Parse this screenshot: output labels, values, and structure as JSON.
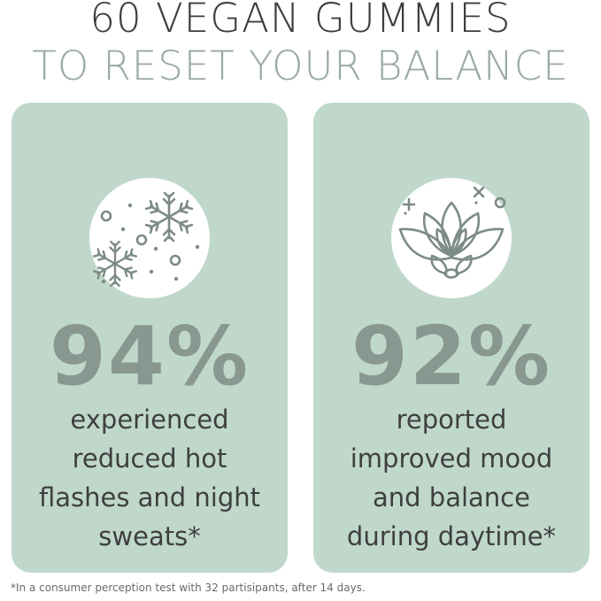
{
  "headline": {
    "line1": "60 VEGAN GUMMIES",
    "line2": "TO RESET YOUR BALANCE"
  },
  "cards": [
    {
      "icon": "snowflake-icon",
      "stat": "94%",
      "lines": [
        "experienced",
        "reduced hot",
        "flashes and night",
        "sweats*"
      ]
    },
    {
      "icon": "lotus-icon",
      "stat": "92%",
      "lines": [
        "reported",
        "improved mood",
        "and balance",
        "during daytime*"
      ]
    }
  ],
  "footnote": "*In a consumer perception test with 32 partisipants, after 14 days.",
  "colors": {
    "card_background": "#bfd8cb",
    "stat_text": "#88978f",
    "icon_stroke": "#7c8c84",
    "headline_dark": "#3d3d3d",
    "headline_light": "#9aa9a2"
  }
}
